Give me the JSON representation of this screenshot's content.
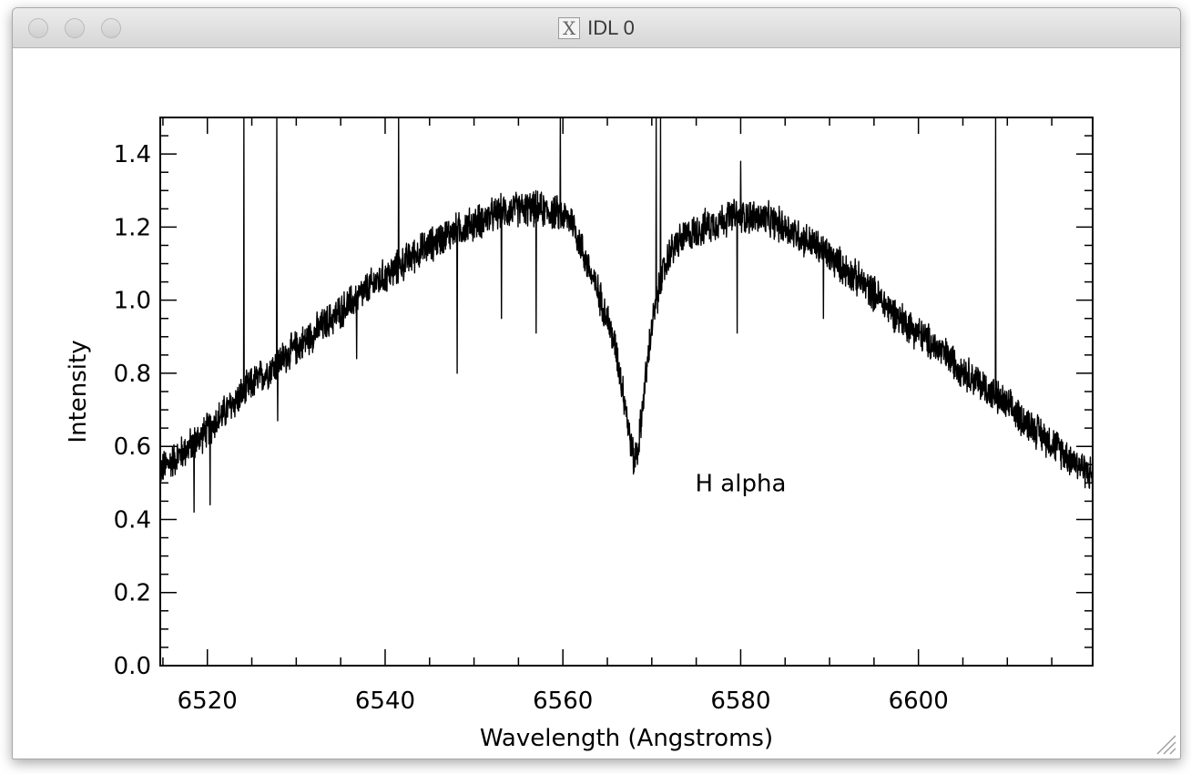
{
  "window": {
    "title": "IDL 0",
    "title_icon": "x11-icon"
  },
  "chart_data": {
    "type": "line",
    "title": "",
    "xlabel": "Wavelength (Angstroms)",
    "ylabel": "Intensity",
    "xlim": [
      6514.7,
      6619.6
    ],
    "ylim": [
      0.0,
      1.5
    ],
    "xticks": [
      6520,
      6540,
      6560,
      6580,
      6600
    ],
    "xtick_labels": [
      "6520",
      "6540",
      "6560",
      "6580",
      "6600"
    ],
    "yticks": [
      0.0,
      0.2,
      0.4,
      0.6,
      0.8,
      1.0,
      1.2,
      1.4
    ],
    "ytick_labels": [
      "0.0",
      "0.2",
      "0.4",
      "0.6",
      "0.8",
      "1.0",
      "1.2",
      "1.4"
    ],
    "annotation": {
      "text": "H alpha",
      "x": 6580.0,
      "y": 0.5
    },
    "series": [
      {
        "name": "spectrum",
        "x": [
          6515,
          6517,
          6519,
          6521,
          6523,
          6525,
          6527,
          6529,
          6531,
          6533,
          6535,
          6537,
          6539,
          6541,
          6543,
          6545,
          6547,
          6549,
          6551,
          6553,
          6555,
          6557,
          6559,
          6561,
          6562,
          6563,
          6564,
          6565,
          6566,
          6567,
          6567.5,
          6568,
          6568.5,
          6569,
          6570,
          6571,
          6572,
          6573,
          6575,
          6577,
          6579,
          6581,
          6583,
          6585,
          6587,
          6589,
          6591,
          6593,
          6595,
          6597,
          6599,
          6601,
          6603,
          6605,
          6607,
          6609,
          6611,
          6613,
          6615,
          6617,
          6619.6
        ],
        "y": [
          0.54,
          0.58,
          0.62,
          0.67,
          0.72,
          0.77,
          0.81,
          0.85,
          0.89,
          0.93,
          0.97,
          1.01,
          1.05,
          1.08,
          1.12,
          1.15,
          1.18,
          1.2,
          1.22,
          1.24,
          1.25,
          1.25,
          1.24,
          1.22,
          1.15,
          1.08,
          1.02,
          0.95,
          0.86,
          0.72,
          0.63,
          0.56,
          0.6,
          0.72,
          0.93,
          1.05,
          1.13,
          1.16,
          1.19,
          1.21,
          1.23,
          1.23,
          1.22,
          1.2,
          1.17,
          1.14,
          1.1,
          1.06,
          1.02,
          0.97,
          0.93,
          0.89,
          0.85,
          0.81,
          0.77,
          0.73,
          0.69,
          0.65,
          0.61,
          0.57,
          0.52
        ]
      }
    ],
    "emission_spikes": [
      {
        "x": 6524.1,
        "y": 1.5
      },
      {
        "x": 6527.8,
        "y": 1.5
      },
      {
        "x": 6541.5,
        "y": 1.5
      },
      {
        "x": 6559.7,
        "y": 1.5
      },
      {
        "x": 6570.5,
        "y": 1.5
      },
      {
        "x": 6571.0,
        "y": 1.5
      },
      {
        "x": 6580.0,
        "y": 1.38
      },
      {
        "x": 6608.7,
        "y": 1.5
      }
    ],
    "absorption_dips": [
      {
        "x": 6518.5,
        "y": 0.42
      },
      {
        "x": 6520.3,
        "y": 0.44
      },
      {
        "x": 6527.9,
        "y": 0.67
      },
      {
        "x": 6536.8,
        "y": 0.84
      },
      {
        "x": 6548.1,
        "y": 0.8
      },
      {
        "x": 6553.1,
        "y": 0.95
      },
      {
        "x": 6557.0,
        "y": 0.91
      },
      {
        "x": 6579.6,
        "y": 0.91
      },
      {
        "x": 6589.3,
        "y": 0.95
      }
    ],
    "noise_amplitude": 0.04
  }
}
